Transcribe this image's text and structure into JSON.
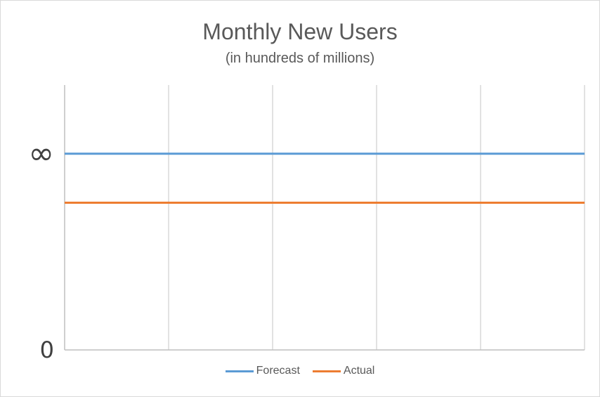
{
  "chart_data": {
    "type": "line",
    "title": "Monthly New Users",
    "subtitle": "(in hundreds of millions)",
    "xlabel": "",
    "ylabel": "",
    "y_ticks": [
      {
        "label": "0",
        "value": 0
      },
      {
        "label": "∞",
        "value": 1
      }
    ],
    "ylim": [
      0,
      1.35
    ],
    "x_grid_count": 5,
    "grid": true,
    "legend_position": "bottom",
    "series": [
      {
        "name": "Forecast",
        "color": "#5b9bd5",
        "value": 1
      },
      {
        "name": "Actual",
        "color": "#ed7d31",
        "value": 0.75
      }
    ]
  }
}
